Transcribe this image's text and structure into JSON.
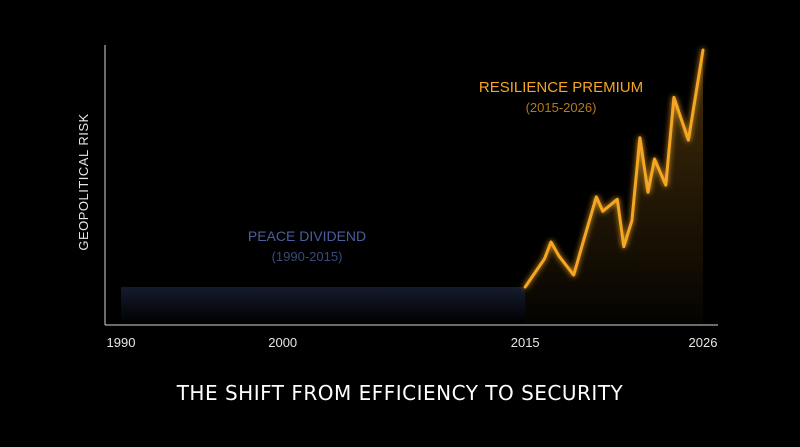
{
  "chart_data": {
    "type": "line",
    "title": "THE SHIFT FROM EFFICIENCY TO SECURITY",
    "xlabel": "",
    "ylabel": "GEOPOLITICAL RISK",
    "x_ticks": [
      "1990",
      "2000",
      "2015",
      "2026"
    ],
    "x_tick_values": [
      1990,
      2000,
      2015,
      2026
    ],
    "xlim": [
      1990,
      2026
    ],
    "ylim": [
      0,
      100
    ],
    "grid": false,
    "series": [
      {
        "name": "PEACE DIVIDEND",
        "period": "(1990-2015)",
        "color": "#3d4f86",
        "x": [
          1990,
          2015
        ],
        "y": [
          0,
          0
        ]
      },
      {
        "name": "RESILIENCE PREMIUM",
        "period": "(2015-2026)",
        "color": "#f5a623",
        "x": [
          2015,
          2016.2,
          2016.6,
          2017.1,
          2018.0,
          2018.5,
          2019.4,
          2019.8,
          2020.7,
          2021.1,
          2021.6,
          2022.1,
          2022.6,
          2023.0,
          2023.7,
          2024.2,
          2025.1,
          2026
        ],
        "y": [
          0,
          12,
          19,
          13,
          5,
          17,
          38,
          32,
          37,
          17,
          28,
          63,
          40,
          54,
          43,
          80,
          62,
          100
        ]
      }
    ]
  }
}
